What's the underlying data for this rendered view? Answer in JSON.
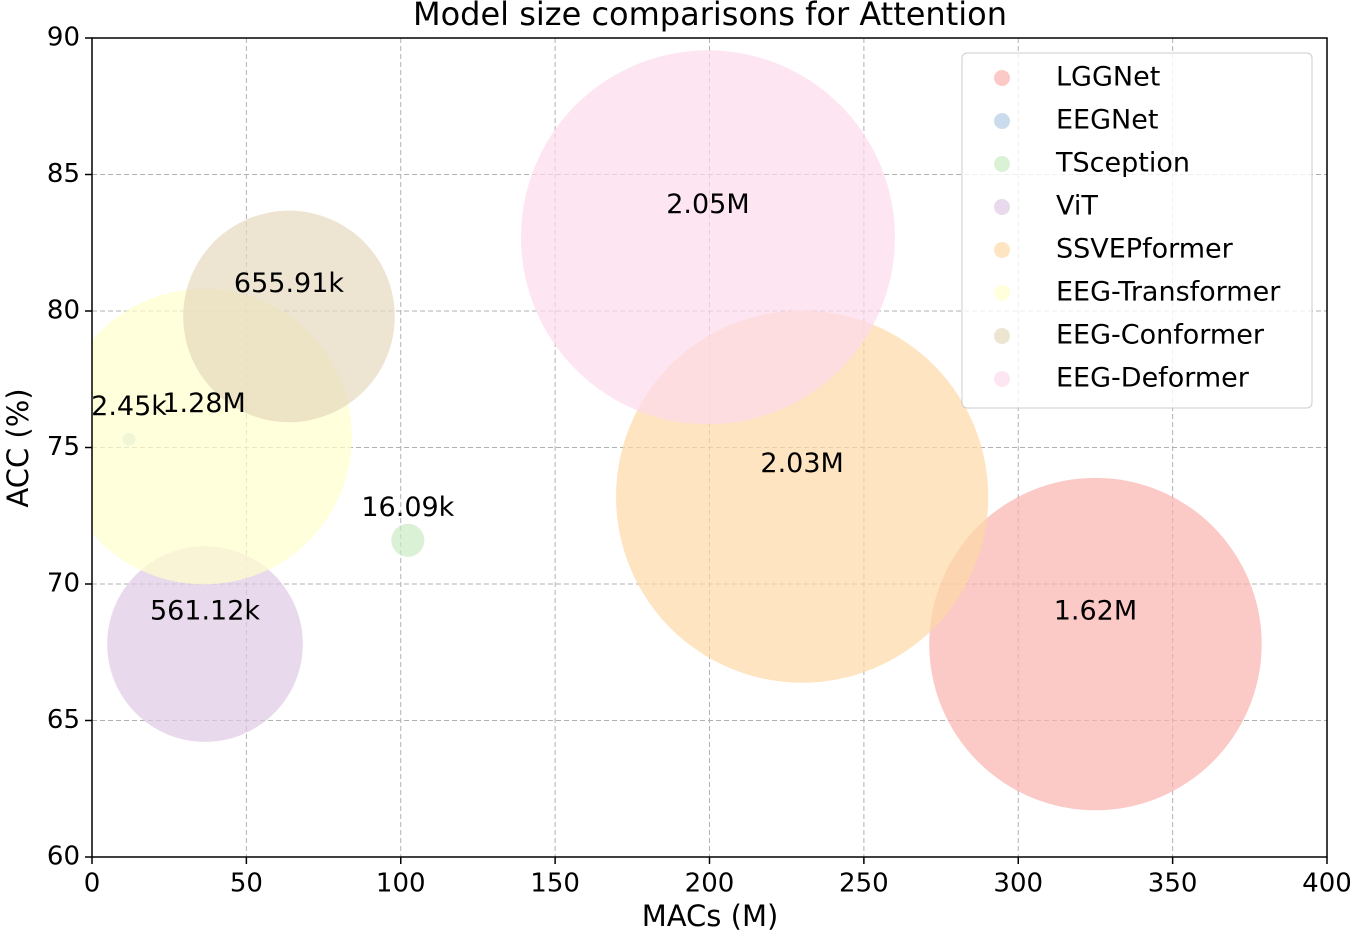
{
  "chart_data": {
    "type": "bubble",
    "title": "Model size comparisons for Attention",
    "xlabel": "MACs (M)",
    "ylabel": "ACC (%)",
    "xlim": [
      0,
      400
    ],
    "xticks": [
      0,
      50,
      100,
      150,
      200,
      250,
      300,
      350,
      400
    ],
    "ylim": [
      60,
      90
    ],
    "yticks": [
      60,
      65,
      70,
      75,
      80,
      85,
      90
    ],
    "grid": true,
    "legend": "upper right",
    "series": [
      {
        "name": "LGGNet",
        "color": "#fbb4ae",
        "x": [
          325
        ],
        "values": [
          67.8
        ],
        "sizes": [
          1620000
        ],
        "value_labels": [
          "1.62M"
        ]
      },
      {
        "name": "EEGNet",
        "color": "#b3cde3",
        "x": [
          12
        ],
        "values": [
          75.3
        ],
        "sizes": [
          2450
        ],
        "value_labels": [
          "2.45k"
        ]
      },
      {
        "name": "TSception",
        "color": "#ccebc5",
        "x": [
          102.3
        ],
        "values": [
          71.6
        ],
        "sizes": [
          16090
        ],
        "value_labels": [
          "16.09k"
        ]
      },
      {
        "name": "ViT",
        "color": "#decbe4",
        "x": [
          36.6
        ],
        "values": [
          67.8
        ],
        "sizes": [
          561120
        ],
        "value_labels": [
          "561.12k"
        ]
      },
      {
        "name": "SSVEPformer",
        "color": "#fed9a6",
        "x": [
          230
        ],
        "values": [
          73.2
        ],
        "sizes": [
          2030000
        ],
        "value_labels": [
          "2.03M"
        ]
      },
      {
        "name": "EEG-Transformer",
        "color": "#ffffcc",
        "x": [
          36.3
        ],
        "values": [
          75.4
        ],
        "sizes": [
          1280000
        ],
        "value_labels": [
          "1.28M"
        ]
      },
      {
        "name": "EEG-Conformer",
        "color": "#e5d8bd",
        "x": [
          63.8
        ],
        "values": [
          79.8
        ],
        "sizes": [
          655910
        ],
        "value_labels": [
          "655.91k"
        ]
      },
      {
        "name": "EEG-Deformer",
        "color": "#fddaec",
        "x": [
          199.5
        ],
        "values": [
          82.7
        ],
        "sizes": [
          2050000
        ],
        "value_labels": [
          "2.05M"
        ]
      }
    ]
  }
}
